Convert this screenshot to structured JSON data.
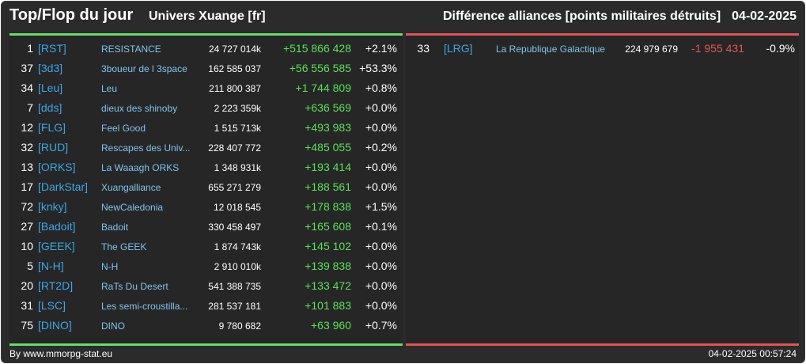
{
  "header": {
    "title": "Top/Flop du jour",
    "universe": "Univers Xuange [fr]",
    "subtitle": "Différence alliances [points militaires détruits]",
    "date": "04-02-2025"
  },
  "top": [
    {
      "rank": "1",
      "tag": "[RST]",
      "name": "RESISTANCE",
      "points": "24 727 014k",
      "diff": "+515 866 428",
      "pct": "+2.1%"
    },
    {
      "rank": "37",
      "tag": "[3d3]",
      "name": "3boueur de l 3space",
      "points": "162 585 037",
      "diff": "+56 556 585",
      "pct": "+53.3%"
    },
    {
      "rank": "34",
      "tag": "[Leu]",
      "name": "Leu",
      "points": "211 800 387",
      "diff": "+1 744 809",
      "pct": "+0.8%"
    },
    {
      "rank": "7",
      "tag": "[dds]",
      "name": "dieux des shinoby",
      "points": "2 223 359k",
      "diff": "+636 569",
      "pct": "+0.0%"
    },
    {
      "rank": "12",
      "tag": "[FLG]",
      "name": "Feel Good",
      "points": "1 515 713k",
      "diff": "+493 983",
      "pct": "+0.0%"
    },
    {
      "rank": "32",
      "tag": "[RUD]",
      "name": "Rescapes des Univ...",
      "points": "228 407 772",
      "diff": "+485 055",
      "pct": "+0.2%"
    },
    {
      "rank": "13",
      "tag": "[ORKS]",
      "name": "La Waaagh ORKS",
      "points": "1 348 931k",
      "diff": "+193 414",
      "pct": "+0.0%"
    },
    {
      "rank": "17",
      "tag": "[DarkStar]",
      "name": "Xuangalliance",
      "points": "655 271 279",
      "diff": "+188 561",
      "pct": "+0.0%"
    },
    {
      "rank": "72",
      "tag": "[knky]",
      "name": "NewCaledonia",
      "points": "12 018 545",
      "diff": "+178 838",
      "pct": "+1.5%"
    },
    {
      "rank": "27",
      "tag": "[Badoit]",
      "name": "Badoit",
      "points": "330 458 497",
      "diff": "+165 608",
      "pct": "+0.1%"
    },
    {
      "rank": "10",
      "tag": "[GEEK]",
      "name": "The GEEK",
      "points": "1 874 743k",
      "diff": "+145 102",
      "pct": "+0.0%"
    },
    {
      "rank": "5",
      "tag": "[N-H]",
      "name": "N-H",
      "points": "2 910 010k",
      "diff": "+139 838",
      "pct": "+0.0%"
    },
    {
      "rank": "20",
      "tag": "[RT2D]",
      "name": "RaTs Du Desert",
      "points": "541 388 735",
      "diff": "+133 472",
      "pct": "+0.0%"
    },
    {
      "rank": "31",
      "tag": "[LSC]",
      "name": "Les semi-croustilla...",
      "points": "281 537 181",
      "diff": "+101 883",
      "pct": "+0.0%"
    },
    {
      "rank": "75",
      "tag": "[DINO]",
      "name": "DINO",
      "points": "9 780 682",
      "diff": "+63 960",
      "pct": "+0.7%"
    }
  ],
  "flop": [
    {
      "rank": "33",
      "tag": "[LRG]",
      "name": "La Republique Galactique",
      "points": "224 979 679",
      "diff": "-1 955 431",
      "pct": "-0.9%"
    }
  ],
  "footer": {
    "credit": "By www.mmorpg-stat.eu",
    "timestamp": "04-02-2025 00:57:24"
  },
  "colors": {
    "background": "#2b2b2b",
    "positive": "#55e455",
    "negative": "#e55555",
    "tag": "#3aa7e8"
  }
}
